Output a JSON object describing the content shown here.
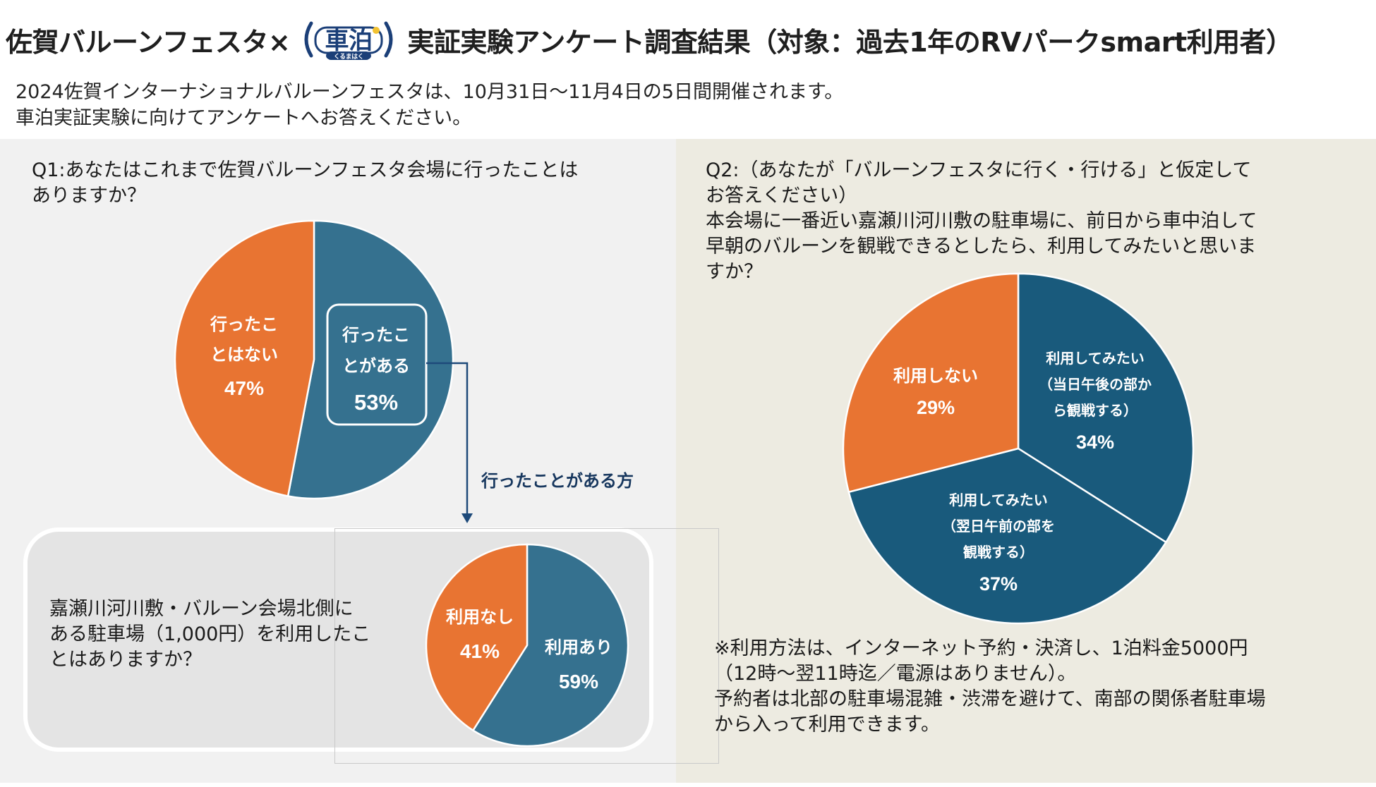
{
  "header": {
    "title_left": "佐賀バルーンフェスタ×",
    "logo_text": "車泊",
    "logo_subtext": "くるまはく",
    "title_right": "実証実験アンケート調査結果（対象：過去1年のRVパークsmart利用者）"
  },
  "intro": {
    "line1": "2024佐賀インターナショナルバルーンフェスタは、10月31日〜11月4日の5日間開催されます。",
    "line2": "車泊実証実験に向けてアンケートへお答えください。"
  },
  "q1": {
    "question_line1": "Q1:あなたはこれまで佐賀バルーンフェスタ会場に行ったことは",
    "question_line2": "ありますか？",
    "arrow_label": "行ったことがある方",
    "sub_question_line1": "嘉瀬川河川敷・バルーン会場北側に",
    "sub_question_line2": "ある駐車場（1,000円）を利用したこ",
    "sub_question_line3": "とはありますか？"
  },
  "q2": {
    "question_line1": "Q2:（あなたが「バルーンフェスタに行く・行ける」と仮定して",
    "question_line2": "お答えください）",
    "question_line3": "本会場に一番近い嘉瀬川河川敷の駐車場に、前日から車中泊して",
    "question_line4": "早朝のバルーンを観戦できるとしたら、利用してみたいと思いま",
    "question_line5": "すか？",
    "note_line1": "※利用方法は、インターネット予約・決済し、1泊料金5000円",
    "note_line2": "（12時〜翌11時迄／電源はありません）。",
    "note_line3": "予約者は北部の駐車場混雑・渋滞を避けて、南部の関係者駐車場",
    "note_line4": "から入って利用できます。"
  },
  "colors": {
    "blue_q1": "#35718f",
    "blue_q2": "#195a7c",
    "orange": "#e87432",
    "arrow": "#1e4a7a",
    "arrow_label": "#17375e"
  },
  "chart_data": [
    {
      "type": "pie",
      "title": "Q1",
      "slices": [
        {
          "label_lines": [
            "行ったこ",
            "とがある"
          ],
          "value": 53,
          "value_label": "53%",
          "color": "#35718f"
        },
        {
          "label_lines": [
            "行ったこ",
            "とはない"
          ],
          "value": 47,
          "value_label": "47%",
          "color": "#e87432"
        }
      ]
    },
    {
      "type": "pie",
      "title": "Q1-sub",
      "slices": [
        {
          "label_lines": [
            "利用あり"
          ],
          "value": 59,
          "value_label": "59%",
          "color": "#35718f"
        },
        {
          "label_lines": [
            "利用なし"
          ],
          "value": 41,
          "value_label": "41%",
          "color": "#e87432"
        }
      ]
    },
    {
      "type": "pie",
      "title": "Q2",
      "slices": [
        {
          "label_lines": [
            "利用してみたい",
            "（当日午後の部か",
            "ら観戦する）"
          ],
          "value": 34,
          "value_label": "34%",
          "color": "#195a7c"
        },
        {
          "label_lines": [
            "利用してみたい",
            "（翌日午前の部を",
            "観戦する）"
          ],
          "value": 37,
          "value_label": "37%",
          "color": "#195a7c"
        },
        {
          "label_lines": [
            "利用しない"
          ],
          "value": 29,
          "value_label": "29%",
          "color": "#e87432"
        }
      ]
    }
  ]
}
